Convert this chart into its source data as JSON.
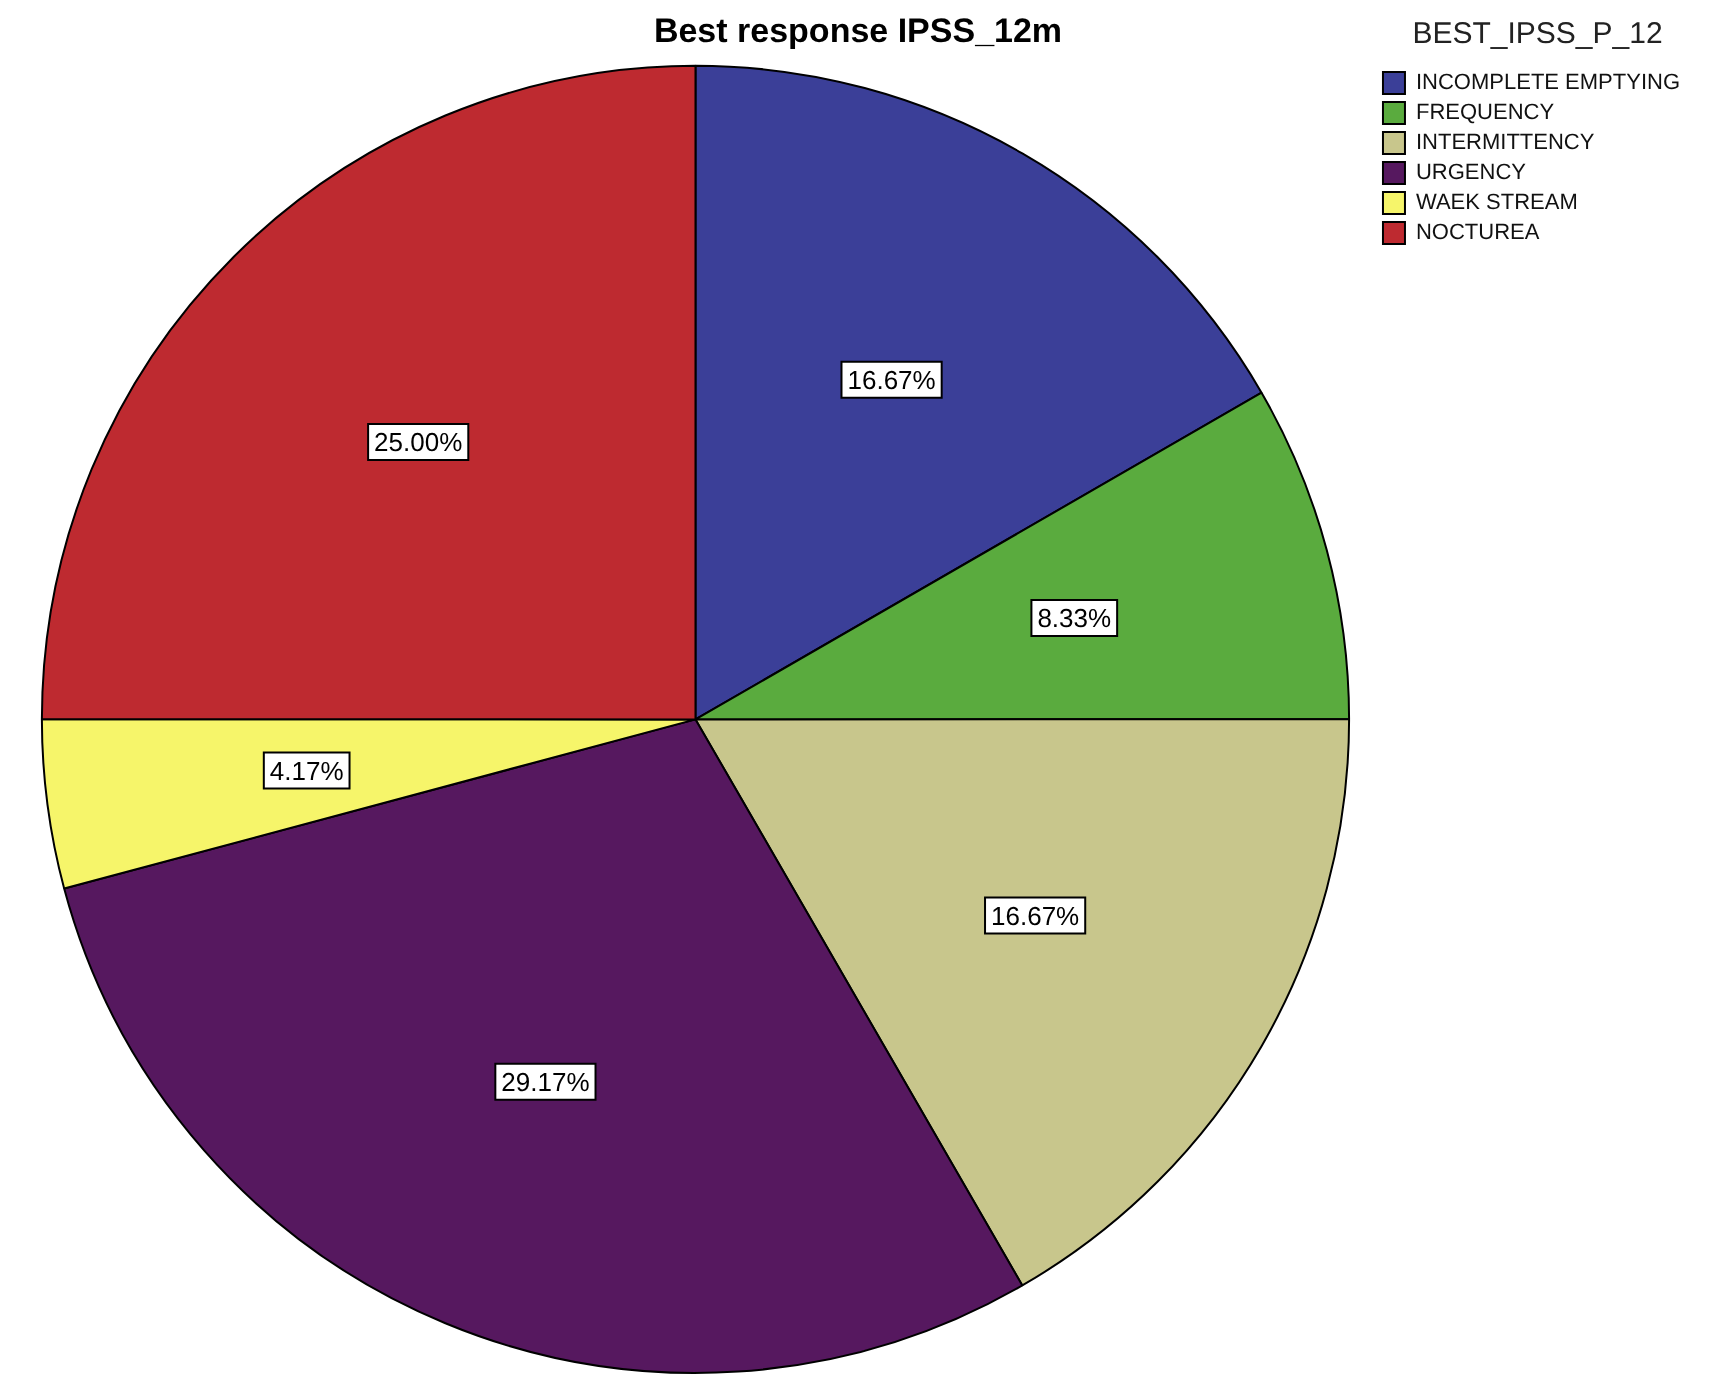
{
  "chart_data": {
    "type": "pie",
    "title": "Best response IPSS_12m",
    "legend_title": "BEST_IPSS_P_12",
    "legend": "top right",
    "categories": [
      "INCOMPLETE EMPTYING",
      "FREQUENCY",
      "INTERMITTENCY",
      "URGENCY",
      "WAEK STREAM",
      "NOCTUREA"
    ],
    "values": [
      16.67,
      8.33,
      16.67,
      29.17,
      4.17,
      25.0
    ],
    "value_labels": [
      "16.67%",
      "8.33%",
      "16.67%",
      "29.17%",
      "4.17%",
      "25.00%"
    ],
    "colors": [
      "#3b3f98",
      "#5aab3e",
      "#c8c68c",
      "#56185f",
      "#f6f56a",
      "#be2a30"
    ]
  }
}
